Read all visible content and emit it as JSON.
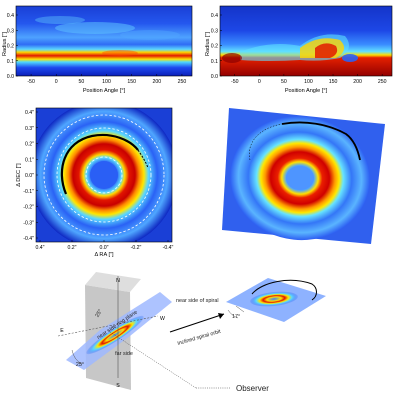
{
  "panels": {
    "top_left": {
      "ylabel": "Radius [\"]",
      "xlabel": "Position Angle [°]",
      "yticks": [
        "0.4",
        "0.3",
        "0.2",
        "0.1",
        "0.0"
      ],
      "xticks": [
        "-50",
        "0",
        "50",
        "100",
        "150",
        "200",
        "250"
      ]
    },
    "top_right": {
      "ylabel": "Radius [\"]",
      "xlabel": "Position Angle [°]",
      "yticks": [
        "0.4",
        "0.3",
        "0.2",
        "0.1",
        "0.0"
      ],
      "xticks": [
        "-50",
        "0",
        "50",
        "100",
        "150",
        "200",
        "250"
      ]
    },
    "middle_left": {
      "ylabel": "Δ DEC [\"]",
      "xlabel": "Δ RA [\"]",
      "yticks": [
        "0.4\"",
        "0.3\"",
        "0.2\"",
        "0.1\"",
        "0.0\"",
        "-0.1\"",
        "-0.2\"",
        "-0.3\"",
        "-0.4\""
      ],
      "xticks": [
        "0.4\"",
        "0.2\"",
        "0.0\"",
        "-0.2\"",
        "-0.4\""
      ]
    }
  },
  "diagram": {
    "labels": {
      "north": "N",
      "south": "S",
      "east": "E",
      "west": "W",
      "angle_left": "25°",
      "angle_right": "17°",
      "near_side_disk": "near side ring plane",
      "far_side": "far side",
      "near_side_spiral": "near side of spiral",
      "inclined_orbit": "inclined spiral orbit",
      "observer": "Observer"
    }
  },
  "colors": {
    "jet_dark_blue": "#00007f",
    "jet_blue": "#1e4dff",
    "jet_cyan": "#39d3ff",
    "jet_yellow": "#ffe100",
    "jet_red": "#e30000",
    "jet_dark_red": "#8b0000"
  }
}
